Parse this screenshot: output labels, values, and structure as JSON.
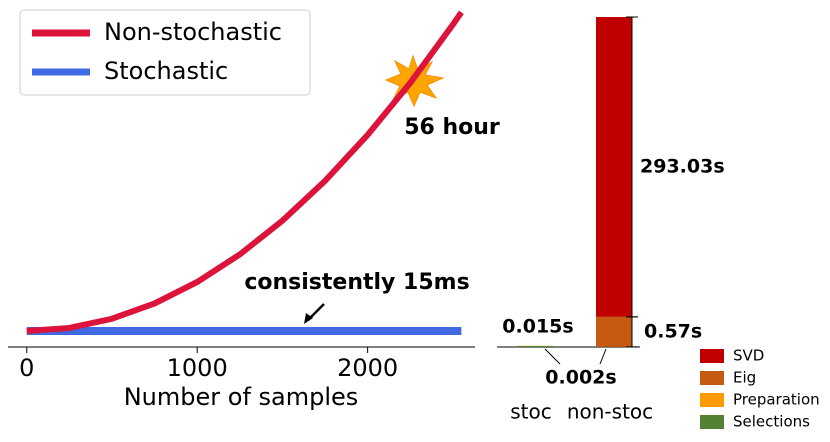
{
  "chart_data": [
    {
      "type": "line",
      "xlabel": "Number of samples",
      "x": [
        0,
        250,
        500,
        750,
        1000,
        1250,
        1500,
        1750,
        2000,
        2250,
        2500,
        2550
      ],
      "series": [
        {
          "name": "Non-stochastic",
          "color": "#dc143c",
          "values": [
            0,
            0.683,
            2.731,
            6.145,
            10.925,
            17.07,
            24.58,
            33.46,
            43.7,
            55.31,
            68.28,
            71.03
          ]
        },
        {
          "name": "Stochastic",
          "color": "#4169e1",
          "values": [
            0,
            0,
            0,
            0,
            0,
            0,
            0,
            0,
            0,
            0,
            0,
            0
          ]
        }
      ],
      "xlim": [
        -110,
        2630
      ],
      "xticks": [
        0,
        1000,
        2000
      ],
      "ylim": [
        0,
        72
      ],
      "annotations": [
        "56 hour",
        "consistently 15ms"
      ],
      "legend": "upper left"
    },
    {
      "type": "stacked_bar",
      "categories": [
        "stoc",
        "non-stoc"
      ],
      "series": [
        {
          "name": "SVD",
          "color": "#c00000",
          "values": [
            0,
            293.03
          ],
          "value_labels": [
            null,
            "293.03s"
          ]
        },
        {
          "name": "Eig",
          "color": "#c55a11",
          "values": [
            0,
            0.57
          ],
          "value_labels": [
            null,
            "0.57s"
          ]
        },
        {
          "name": "Preparation",
          "color": "#ff9900",
          "values": [
            0.002,
            0.002
          ],
          "value_labels": [
            null,
            "0.002s"
          ]
        },
        {
          "name": "Selections",
          "color": "#548235",
          "values": [
            0.015,
            0
          ],
          "value_labels": [
            "0.015s",
            null
          ]
        }
      ],
      "ylim": [
        0,
        293.6
      ],
      "yscale": "symlog",
      "linthresh": 0.8,
      "legend": "lower right"
    }
  ]
}
